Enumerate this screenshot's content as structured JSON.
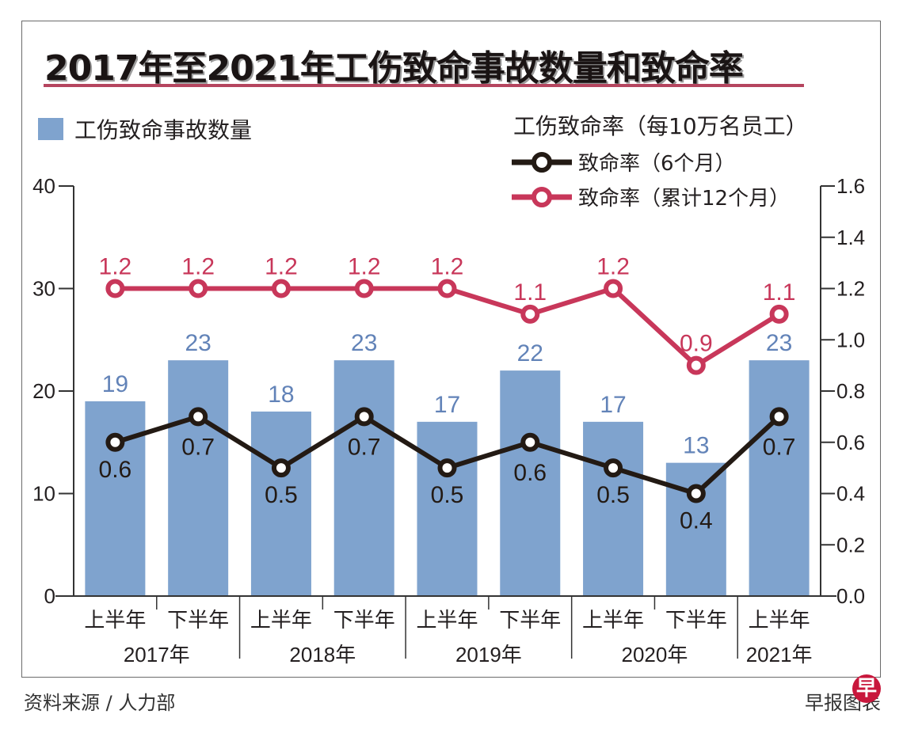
{
  "title": "2017年至2021年工伤致命事故数量和致命率",
  "legend": {
    "bars": "工伤致命事故数量",
    "rate_title": "工伤致命率（每10万名员工）",
    "line_6m": "致命率（6个月）",
    "line_12m": "致命率（累计12个月）"
  },
  "footer": {
    "source": "资料来源 / 人力部",
    "credit": "早报图表",
    "logo_char": "早"
  },
  "colors": {
    "bar": "#7fa3ce",
    "bar_label": "#6283b8",
    "line_6m": "#231a14",
    "line_12m": "#c8375a",
    "axis": "#333333",
    "title_rule": "#b5455f"
  },
  "chart_data": {
    "type": "bar",
    "title": "2017年至2021年工伤致命事故数量和致命率",
    "categories": [
      "上半年",
      "下半年",
      "上半年",
      "下半年",
      "上半年",
      "下半年",
      "上半年",
      "下半年",
      "上半年"
    ],
    "category_groups": [
      {
        "label": "2017年",
        "span": 2
      },
      {
        "label": "2018年",
        "span": 2
      },
      {
        "label": "2019年",
        "span": 2
      },
      {
        "label": "2020年",
        "span": 2
      },
      {
        "label": "2021年",
        "span": 1
      }
    ],
    "series": [
      {
        "name": "工伤致命事故数量",
        "type": "bar",
        "axis": "left",
        "values": [
          19,
          23,
          18,
          23,
          17,
          22,
          17,
          13,
          23
        ]
      },
      {
        "name": "致命率（6个月）",
        "type": "line",
        "axis": "right",
        "values": [
          0.6,
          0.7,
          0.5,
          0.7,
          0.5,
          0.6,
          0.5,
          0.4,
          0.7
        ]
      },
      {
        "name": "致命率（累计12个月）",
        "type": "line",
        "axis": "right",
        "values": [
          1.2,
          1.2,
          1.2,
          1.2,
          1.2,
          1.1,
          1.2,
          0.9,
          1.1
        ]
      }
    ],
    "y_left": {
      "ylim": [
        0,
        40
      ],
      "ticks": [
        0,
        10,
        20,
        30,
        40
      ]
    },
    "y_right": {
      "ylim": [
        0,
        1.6
      ],
      "ticks": [
        "0.0",
        "0.2",
        "0.4",
        "0.6",
        "0.8",
        "1.0",
        "1.2",
        "1.4",
        "1.6"
      ]
    },
    "xlabel": "",
    "ylabel": "",
    "grid": false,
    "legend_position": "top"
  }
}
